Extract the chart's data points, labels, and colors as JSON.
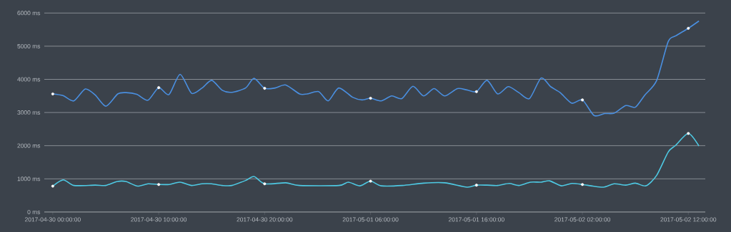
{
  "chart_data": {
    "type": "line",
    "series": [
      {
        "color": "#4a8fe0",
        "x": [
          "2017-04-30T00:00",
          "2017-04-30T00:58",
          "2017-04-30T01:59",
          "2017-04-30T03:04",
          "2017-04-30T04:00",
          "2017-04-30T05:01",
          "2017-04-30T06:08",
          "2017-04-30T06:55",
          "2017-04-30T07:56",
          "2017-04-30T08:59",
          "2017-04-30T10:00",
          "2017-04-30T10:58",
          "2017-04-30T12:01",
          "2017-04-30T13:06",
          "2017-04-30T14:06",
          "2017-04-30T15:00",
          "2017-04-30T16:00",
          "2017-04-30T16:54",
          "2017-04-30T18:12",
          "2017-04-30T19:00",
          "2017-04-30T20:00",
          "2017-04-30T21:00",
          "2017-04-30T22:00",
          "2017-04-30T23:18",
          "2017-05-01T00:00",
          "2017-05-01T01:06",
          "2017-05-01T02:00",
          "2017-05-01T03:00",
          "2017-05-01T04:18",
          "2017-05-01T05:12",
          "2017-05-01T06:00",
          "2017-05-01T07:00",
          "2017-05-01T08:00",
          "2017-05-01T08:57",
          "2017-05-01T10:00",
          "2017-05-01T11:00",
          "2017-05-01T12:00",
          "2017-05-01T13:00",
          "2017-05-01T14:12",
          "2017-05-01T15:06",
          "2017-05-01T16:00",
          "2017-05-01T17:00",
          "2017-05-01T18:00",
          "2017-05-01T19:00",
          "2017-05-01T20:00",
          "2017-05-01T21:00",
          "2017-05-01T22:06",
          "2017-05-01T23:00",
          "2017-05-01T23:54",
          "2017-05-02T01:00",
          "2017-05-02T02:00",
          "2017-05-02T03:06",
          "2017-05-02T04:06",
          "2017-05-02T05:00",
          "2017-05-02T06:06",
          "2017-05-02T07:00",
          "2017-05-02T07:54",
          "2017-05-02T09:00",
          "2017-05-02T10:06",
          "2017-05-02T10:48",
          "2017-05-02T12:00",
          "2017-05-02T13:00"
        ],
        "values": [
          3560,
          3510,
          3350,
          3710,
          3530,
          3190,
          3560,
          3600,
          3550,
          3370,
          3750,
          3540,
          4150,
          3580,
          3740,
          3970,
          3670,
          3610,
          3740,
          4030,
          3730,
          3740,
          3830,
          3560,
          3560,
          3630,
          3350,
          3740,
          3460,
          3380,
          3430,
          3350,
          3500,
          3420,
          3790,
          3500,
          3720,
          3500,
          3720,
          3680,
          3630,
          3970,
          3560,
          3780,
          3600,
          3420,
          4040,
          3780,
          3600,
          3280,
          3380,
          2910,
          2970,
          2980,
          3210,
          3160,
          3530,
          3960,
          5140,
          5310,
          5540,
          5760
        ]
      },
      {
        "color": "#4ec9e3",
        "x": [
          "2017-04-30T00:00",
          "2017-04-30T01:00",
          "2017-04-30T02:00",
          "2017-04-30T04:00",
          "2017-04-30T05:00",
          "2017-04-30T06:06",
          "2017-04-30T06:54",
          "2017-04-30T08:00",
          "2017-04-30T09:00",
          "2017-04-30T10:00",
          "2017-04-30T11:00",
          "2017-04-30T12:00",
          "2017-04-30T13:06",
          "2017-04-30T14:06",
          "2017-04-30T15:00",
          "2017-04-30T16:00",
          "2017-04-30T16:54",
          "2017-04-30T18:12",
          "2017-04-30T19:00",
          "2017-04-30T20:00",
          "2017-04-30T22:00",
          "2017-04-30T23:18",
          "2017-05-01T03:00",
          "2017-05-01T03:54",
          "2017-05-01T05:00",
          "2017-05-01T06:00",
          "2017-05-01T07:00",
          "2017-05-01T09:00",
          "2017-05-01T11:00",
          "2017-05-01T13:00",
          "2017-05-01T15:06",
          "2017-05-01T16:00",
          "2017-05-01T17:00",
          "2017-05-01T18:00",
          "2017-05-01T19:06",
          "2017-05-01T20:00",
          "2017-05-01T21:06",
          "2017-05-01T22:06",
          "2017-05-01T22:54",
          "2017-05-02T00:00",
          "2017-05-02T01:00",
          "2017-05-02T02:00",
          "2017-05-02T03:00",
          "2017-05-02T04:00",
          "2017-05-02T05:00",
          "2017-05-02T06:06",
          "2017-05-02T07:00",
          "2017-05-02T08:00",
          "2017-05-02T09:00",
          "2017-05-02T10:06",
          "2017-05-02T10:48",
          "2017-05-02T12:00",
          "2017-05-02T13:00"
        ],
        "values": [
          780,
          970,
          800,
          810,
          800,
          920,
          920,
          780,
          850,
          830,
          830,
          900,
          800,
          850,
          850,
          800,
          800,
          950,
          1070,
          850,
          880,
          800,
          800,
          900,
          790,
          930,
          790,
          800,
          870,
          880,
          750,
          810,
          810,
          800,
          860,
          800,
          900,
          900,
          940,
          790,
          860,
          830,
          780,
          750,
          850,
          810,
          870,
          790,
          1100,
          1810,
          2010,
          2370,
          1990
        ]
      },
      {
        "type": "scatter",
        "color": "#ffffff",
        "marker": "circle",
        "x": [
          "2017-04-30T00:00",
          "2017-04-30T10:00",
          "2017-04-30T20:00",
          "2017-05-01T06:00",
          "2017-05-01T16:00",
          "2017-05-02T02:00",
          "2017-05-02T12:00",
          "2017-04-30T00:00",
          "2017-04-30T10:00",
          "2017-04-30T20:00",
          "2017-05-01T06:00",
          "2017-05-01T16:00",
          "2017-05-02T02:00",
          "2017-05-02T12:00"
        ],
        "values": [
          3560,
          3750,
          3730,
          3430,
          3630,
          3380,
          5540,
          780,
          830,
          850,
          930,
          810,
          830,
          2370
        ]
      }
    ],
    "xlim": [
      "2017-04-29T23:12",
      "2017-05-02T13:36"
    ],
    "xticks": [
      {
        "value": "2017-04-30T00:00",
        "label": "2017-04-30 00:00:00"
      },
      {
        "value": "2017-04-30T10:00",
        "label": "2017-04-30 10:00:00"
      },
      {
        "value": "2017-04-30T20:00",
        "label": "2017-04-30 20:00:00"
      },
      {
        "value": "2017-05-01T06:00",
        "label": "2017-05-01 06:00:00"
      },
      {
        "value": "2017-05-01T16:00",
        "label": "2017-05-01 16:00:00"
      },
      {
        "value": "2017-05-02T02:00",
        "label": "2017-05-02 02:00:00"
      },
      {
        "value": "2017-05-02T12:00",
        "label": "2017-05-02 12:00:00"
      }
    ],
    "ylim": [
      0,
      6000
    ],
    "yticks": [
      {
        "value": 0,
        "label": "0 ms"
      },
      {
        "value": 1000,
        "label": "1000 ms"
      },
      {
        "value": 2000,
        "label": "2000 ms"
      },
      {
        "value": 3000,
        "label": "3000 ms"
      },
      {
        "value": 4000,
        "label": "4000 ms"
      },
      {
        "value": 5000,
        "label": "5000 ms"
      },
      {
        "value": 6000,
        "label": "6000 ms"
      }
    ],
    "grid": "y",
    "line_style": "solid"
  }
}
